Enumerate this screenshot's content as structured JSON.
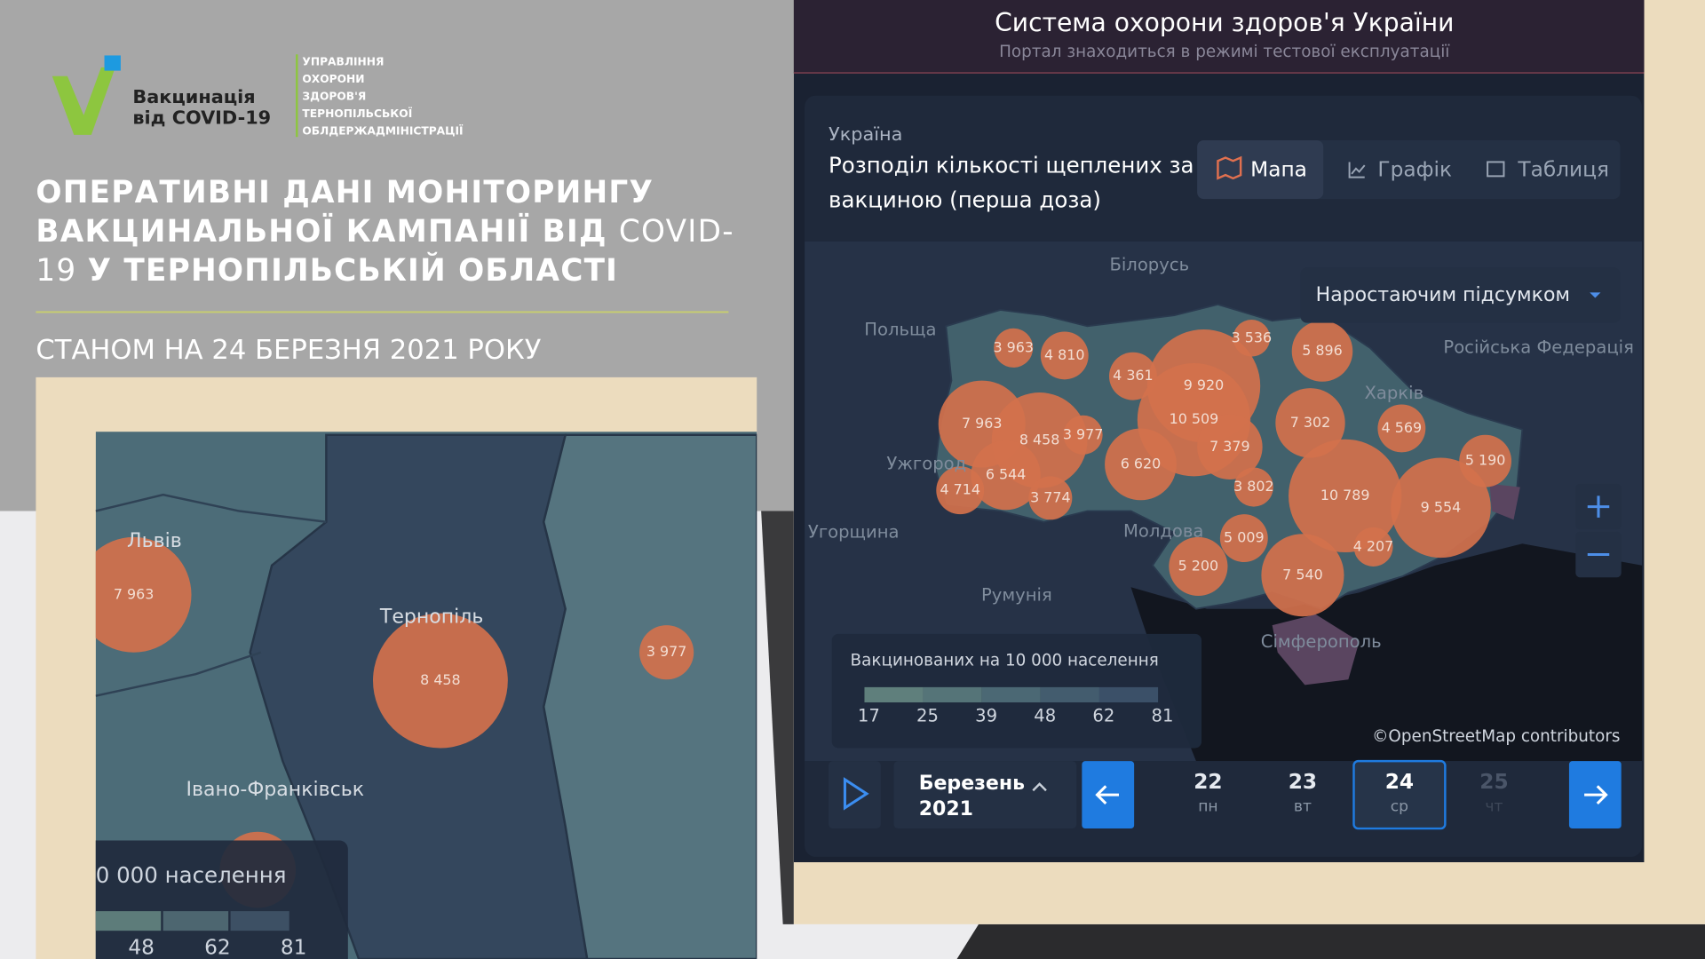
{
  "logo": {
    "title_lines": [
      "Вакцинація",
      "від COVID-19"
    ],
    "org_lines": [
      "УПРАВЛІННЯ",
      "ОХОРОНИ",
      "ЗДОРОВ'Я",
      "ТЕРНОПІЛЬСЬКОЇ",
      "ОБЛДЕРЖАДМІНІСТРАЦІЇ"
    ]
  },
  "headline": {
    "lines": [
      [
        {
          "text": "ОПЕРАТИВНІ ДАНІ МОНІТОРИНГУ",
          "bold": true
        }
      ],
      [
        {
          "text": "ВАКЦИНАЛЬНОЇ КАМПАНІЇ ВІД ",
          "bold": true
        },
        {
          "text": "COVID-",
          "bold": false
        }
      ],
      [
        {
          "text": "19 ",
          "bold": false
        },
        {
          "text": "У ТЕРНОПІЛЬСЬКІЙ ОБЛАСТІ",
          "bold": true
        }
      ]
    ],
    "date": "СТАНОМ НА 24 БЕРЕЗНЯ 2021 РОКУ"
  },
  "zoom_map": {
    "places": [
      "Львів",
      "Тернопіль",
      "Івано-Франківськ"
    ],
    "bubbles": [
      "7 963",
      "8 458",
      "3 977"
    ],
    "legend_title": "0 000 населення",
    "legend_ticks": [
      "48",
      "62",
      "81"
    ]
  },
  "portal": {
    "title": "Система охорони здоров'я України",
    "subtitle": "Портал знаходиться в режимі тестової експлуатації",
    "country": "Україна",
    "heading_lines": [
      "Розподіл кількості щеплених за",
      "вакциною (перша доза)"
    ],
    "tabs": [
      "Мапа",
      "Графік",
      "Таблиця"
    ],
    "dropdown": "Наростаючим підсумком",
    "places": [
      "Білорусь",
      "Польща",
      "Російська Федерація",
      "Харків",
      "Ужгород",
      "Угорщина",
      "Молдова",
      "Румунія",
      "Сімферополь"
    ],
    "bubbles": [
      "3 963",
      "4 810",
      "4 361",
      "9 920",
      "3 536",
      "5 896",
      "7 963",
      "8 458",
      "3 977",
      "10 509",
      "7 379",
      "7 302",
      "4 569",
      "6 620",
      "6 544",
      "4 714",
      "3 774",
      "3 802",
      "10 789",
      "5 190",
      "9 554",
      "5 009",
      "4 207",
      "5 200",
      "7 540"
    ],
    "legend_title": "Вакцинованих на 10 000 населення",
    "legend_ticks": [
      "17",
      "25",
      "39",
      "48",
      "62",
      "81"
    ],
    "attribution": "©OpenStreetMap contributors",
    "month": "Березень",
    "year": "2021",
    "days": [
      {
        "day": "22",
        "weekday": "пн"
      },
      {
        "day": "23",
        "weekday": "вт"
      },
      {
        "day": "24",
        "weekday": "ср"
      },
      {
        "day": "25",
        "weekday": "чт"
      }
    ]
  }
}
